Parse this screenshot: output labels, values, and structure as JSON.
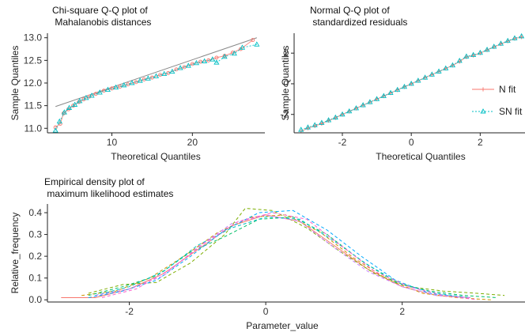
{
  "chart_data": [
    {
      "type": "scatter",
      "title_lines": [
        "Chi-square Q-Q plot of",
        " Mahalanobis distances"
      ],
      "xlabel": "Theoretical Quantiles",
      "ylabel": "Sample Quantiles",
      "xlim": [
        2,
        29
      ],
      "ylim": [
        10.9,
        13.1
      ],
      "xticks": [
        10,
        20
      ],
      "yticks": [
        11.0,
        11.5,
        12.0,
        12.5,
        13.0
      ],
      "ytick_labels": [
        "11.0",
        "11.5",
        "12.0",
        "12.5",
        "13.0"
      ],
      "reference_line": {
        "x": [
          3,
          28
        ],
        "y": [
          11.48,
          13.0
        ]
      },
      "series": [
        {
          "color": "#f8766d",
          "marker": "circle",
          "points": [
            [
              3.0,
              11.02
            ],
            [
              3.6,
              11.1
            ],
            [
              4.0,
              11.33
            ],
            [
              4.6,
              11.42
            ],
            [
              5.2,
              11.5
            ],
            [
              5.9,
              11.58
            ],
            [
              6.5,
              11.64
            ],
            [
              7.2,
              11.7
            ],
            [
              8.0,
              11.76
            ],
            [
              9.0,
              11.83
            ],
            [
              10.0,
              11.88
            ],
            [
              11.0,
              11.92
            ],
            [
              12.0,
              11.97
            ],
            [
              13.0,
              12.02
            ],
            [
              14.0,
              12.08
            ],
            [
              15.0,
              12.12
            ],
            [
              16.0,
              12.18
            ],
            [
              17.0,
              12.22
            ],
            [
              18.0,
              12.3
            ],
            [
              19.0,
              12.35
            ],
            [
              20.0,
              12.42
            ],
            [
              21.0,
              12.47
            ],
            [
              22.0,
              12.5
            ],
            [
              23.0,
              12.56
            ],
            [
              24.0,
              12.6
            ],
            [
              25.0,
              12.67
            ],
            [
              26.0,
              12.75
            ],
            [
              27.5,
              12.95
            ]
          ]
        },
        {
          "color": "#00bfc4",
          "marker": "triangle",
          "points": [
            [
              3.0,
              10.95
            ],
            [
              3.5,
              11.15
            ],
            [
              4.1,
              11.35
            ],
            [
              4.7,
              11.45
            ],
            [
              5.4,
              11.52
            ],
            [
              6.0,
              11.6
            ],
            [
              6.8,
              11.67
            ],
            [
              7.5,
              11.72
            ],
            [
              8.5,
              11.79
            ],
            [
              9.5,
              11.85
            ],
            [
              10.5,
              11.9
            ],
            [
              11.5,
              11.95
            ],
            [
              12.5,
              12.0
            ],
            [
              13.5,
              12.05
            ],
            [
              14.5,
              12.1
            ],
            [
              15.5,
              12.15
            ],
            [
              16.5,
              12.2
            ],
            [
              17.5,
              12.25
            ],
            [
              18.5,
              12.33
            ],
            [
              19.5,
              12.38
            ],
            [
              20.5,
              12.44
            ],
            [
              21.5,
              12.48
            ],
            [
              22.5,
              12.52
            ],
            [
              23.0,
              12.45
            ],
            [
              24.0,
              12.58
            ],
            [
              25.2,
              12.65
            ],
            [
              26.2,
              12.78
            ],
            [
              28.0,
              12.85
            ]
          ]
        }
      ]
    },
    {
      "type": "scatter",
      "title_lines": [
        "Normal Q-Q plot of",
        " standardized residuals"
      ],
      "xlabel": "Theoretical Quantiles",
      "ylabel": "Sample Quantiles",
      "xlim": [
        -3.4,
        3.3
      ],
      "ylim": [
        -3.2,
        3.3
      ],
      "xticks": [
        -2,
        0,
        2
      ],
      "yticks": [
        -2,
        0,
        2
      ],
      "legend": {
        "placement": "right",
        "entries": [
          {
            "label": "N fit",
            "color": "#f8766d",
            "marker": "plus",
            "line": "solid"
          },
          {
            "label": "SN fit",
            "color": "#00bfc4",
            "marker": "triangle",
            "line": "dotted"
          }
        ]
      },
      "series": [
        {
          "name": "N fit",
          "color": "#f8766d",
          "marker": "plus",
          "points": [
            [
              -3.2,
              -3.1
            ],
            [
              -3.0,
              -2.9
            ],
            [
              -2.8,
              -2.75
            ],
            [
              -2.6,
              -2.6
            ],
            [
              -2.4,
              -2.4
            ],
            [
              -2.2,
              -2.22
            ],
            [
              -2.0,
              -2.0
            ],
            [
              -1.8,
              -1.8
            ],
            [
              -1.6,
              -1.6
            ],
            [
              -1.4,
              -1.4
            ],
            [
              -1.2,
              -1.2
            ],
            [
              -1.0,
              -1.0
            ],
            [
              -0.8,
              -0.8
            ],
            [
              -0.6,
              -0.6
            ],
            [
              -0.4,
              -0.4
            ],
            [
              -0.2,
              -0.2
            ],
            [
              0.0,
              0.0
            ],
            [
              0.2,
              0.2
            ],
            [
              0.4,
              0.4
            ],
            [
              0.6,
              0.6
            ],
            [
              0.8,
              0.8
            ],
            [
              1.0,
              1.0
            ],
            [
              1.2,
              1.2
            ],
            [
              1.4,
              1.45
            ],
            [
              1.6,
              1.75
            ],
            [
              1.8,
              1.85
            ],
            [
              2.0,
              2.0
            ],
            [
              2.2,
              2.2
            ],
            [
              2.4,
              2.4
            ],
            [
              2.6,
              2.6
            ],
            [
              2.8,
              2.78
            ],
            [
              3.0,
              2.95
            ],
            [
              3.2,
              3.05
            ]
          ]
        },
        {
          "name": "SN fit",
          "color": "#00bfc4",
          "marker": "triangle",
          "points": [
            [
              -3.2,
              -3.0
            ],
            [
              -3.0,
              -2.85
            ],
            [
              -2.8,
              -2.7
            ],
            [
              -2.6,
              -2.55
            ],
            [
              -2.4,
              -2.38
            ],
            [
              -2.2,
              -2.2
            ],
            [
              -2.0,
              -2.0
            ],
            [
              -1.8,
              -1.8
            ],
            [
              -1.6,
              -1.6
            ],
            [
              -1.4,
              -1.4
            ],
            [
              -1.2,
              -1.2
            ],
            [
              -1.0,
              -1.0
            ],
            [
              -0.8,
              -0.8
            ],
            [
              -0.6,
              -0.6
            ],
            [
              -0.4,
              -0.4
            ],
            [
              -0.2,
              -0.2
            ],
            [
              0.0,
              0.0
            ],
            [
              0.2,
              0.2
            ],
            [
              0.4,
              0.4
            ],
            [
              0.6,
              0.6
            ],
            [
              0.8,
              0.8
            ],
            [
              1.0,
              1.0
            ],
            [
              1.2,
              1.2
            ],
            [
              1.4,
              1.5
            ],
            [
              1.6,
              1.78
            ],
            [
              1.8,
              1.88
            ],
            [
              2.0,
              2.02
            ],
            [
              2.2,
              2.22
            ],
            [
              2.4,
              2.42
            ],
            [
              2.6,
              2.62
            ],
            [
              2.8,
              2.8
            ],
            [
              3.0,
              2.97
            ],
            [
              3.2,
              3.1
            ]
          ]
        }
      ]
    },
    {
      "type": "line",
      "title_lines": [
        "Empirical density plot of",
        " maximum likelihood estimates"
      ],
      "xlabel": "Parameter_value",
      "ylabel": "Relative_frequency",
      "xlim": [
        -3.2,
        3.8
      ],
      "ylim": [
        -0.01,
        0.44
      ],
      "xticks": [
        -2,
        0,
        2
      ],
      "yticks": [
        0.0,
        0.1,
        0.2,
        0.3,
        0.4
      ],
      "ytick_labels": [
        "0.0",
        "0.1",
        "0.2",
        "0.3",
        "0.4"
      ],
      "series": [
        {
          "color": "#f8766d",
          "dash": "solid",
          "points": [
            [
              -3.0,
              0.01
            ],
            [
              -2.5,
              0.01
            ],
            [
              -2.0,
              0.05
            ],
            [
              -1.5,
              0.12
            ],
            [
              -1.0,
              0.23
            ],
            [
              -0.5,
              0.34
            ],
            [
              0.0,
              0.39
            ],
            [
              0.5,
              0.36
            ],
            [
              1.0,
              0.25
            ],
            [
              1.5,
              0.14
            ],
            [
              2.0,
              0.06
            ],
            [
              2.5,
              0.02
            ],
            [
              3.0,
              0.01
            ]
          ]
        },
        {
          "color": "#cd9600",
          "dash": "dashed",
          "points": [
            [
              -2.7,
              0.02
            ],
            [
              -2.2,
              0.04
            ],
            [
              -1.7,
              0.1
            ],
            [
              -1.2,
              0.2
            ],
            [
              -0.7,
              0.31
            ],
            [
              -0.2,
              0.38
            ],
            [
              0.3,
              0.39
            ],
            [
              0.8,
              0.31
            ],
            [
              1.3,
              0.19
            ],
            [
              1.8,
              0.09
            ],
            [
              2.3,
              0.03
            ],
            [
              2.8,
              0.01
            ],
            [
              3.3,
              0.0
            ]
          ]
        },
        {
          "color": "#7cae00",
          "dash": "dashed",
          "points": [
            [
              -2.6,
              0.03
            ],
            [
              -2.1,
              0.07
            ],
            [
              -1.6,
              0.08
            ],
            [
              -1.1,
              0.17
            ],
            [
              -0.6,
              0.3
            ],
            [
              -0.3,
              0.42
            ],
            [
              0.1,
              0.41
            ],
            [
              0.6,
              0.33
            ],
            [
              1.1,
              0.22
            ],
            [
              1.6,
              0.12
            ],
            [
              2.1,
              0.06
            ],
            [
              2.6,
              0.04
            ],
            [
              3.1,
              0.03
            ],
            [
              3.5,
              0.02
            ]
          ]
        },
        {
          "color": "#00be67",
          "dash": "dashed",
          "points": [
            [
              -2.6,
              0.02
            ],
            [
              -2.1,
              0.06
            ],
            [
              -1.6,
              0.11
            ],
            [
              -1.1,
              0.22
            ],
            [
              -0.6,
              0.29
            ],
            [
              -0.1,
              0.37
            ],
            [
              0.4,
              0.38
            ],
            [
              0.9,
              0.3
            ],
            [
              1.4,
              0.18
            ],
            [
              1.9,
              0.08
            ],
            [
              2.4,
              0.04
            ],
            [
              2.9,
              0.02
            ],
            [
              3.4,
              0.01
            ]
          ]
        },
        {
          "color": "#00bfc4",
          "dash": "dashed",
          "points": [
            [
              -2.5,
              0.02
            ],
            [
              -2.0,
              0.06
            ],
            [
              -1.5,
              0.13
            ],
            [
              -1.0,
              0.25
            ],
            [
              -0.5,
              0.33
            ],
            [
              0.0,
              0.38
            ],
            [
              0.5,
              0.37
            ],
            [
              1.0,
              0.27
            ],
            [
              1.5,
              0.16
            ],
            [
              2.0,
              0.07
            ],
            [
              2.5,
              0.03
            ],
            [
              3.0,
              0.01
            ]
          ]
        },
        {
          "color": "#00a9ff",
          "dash": "dashed",
          "points": [
            [
              -2.6,
              0.01
            ],
            [
              -2.1,
              0.04
            ],
            [
              -1.6,
              0.09
            ],
            [
              -1.1,
              0.2
            ],
            [
              -0.6,
              0.32
            ],
            [
              -0.1,
              0.4
            ],
            [
              0.4,
              0.41
            ],
            [
              0.9,
              0.32
            ],
            [
              1.4,
              0.2
            ],
            [
              1.9,
              0.09
            ],
            [
              2.4,
              0.03
            ],
            [
              2.9,
              0.01
            ]
          ]
        },
        {
          "color": "#c77cff",
          "dash": "dashed",
          "points": [
            [
              -2.5,
              0.02
            ],
            [
              -2.0,
              0.05
            ],
            [
              -1.5,
              0.11
            ],
            [
              -1.0,
              0.24
            ],
            [
              -0.5,
              0.35
            ],
            [
              0.0,
              0.39
            ],
            [
              0.5,
              0.36
            ],
            [
              1.0,
              0.24
            ],
            [
              1.5,
              0.13
            ],
            [
              2.0,
              0.06
            ],
            [
              2.5,
              0.02
            ],
            [
              3.0,
              0.01
            ]
          ]
        },
        {
          "color": "#ff61cc",
          "dash": "dashed",
          "points": [
            [
              -2.4,
              0.01
            ],
            [
              -1.9,
              0.05
            ],
            [
              -1.4,
              0.14
            ],
            [
              -0.9,
              0.26
            ],
            [
              -0.4,
              0.36
            ],
            [
              0.1,
              0.4
            ],
            [
              0.6,
              0.37
            ],
            [
              1.1,
              0.25
            ],
            [
              1.6,
              0.13
            ],
            [
              2.1,
              0.06
            ],
            [
              2.6,
              0.02
            ],
            [
              3.1,
              0.0
            ]
          ]
        }
      ]
    }
  ]
}
